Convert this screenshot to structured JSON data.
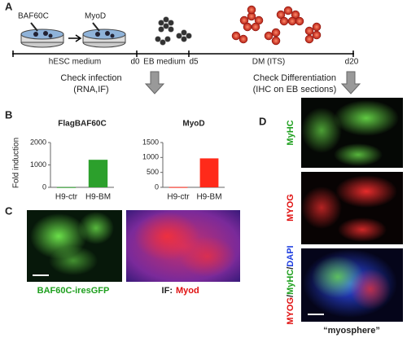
{
  "panel_a": {
    "label": "A",
    "steps": [
      "BAF60C",
      "MyoD"
    ],
    "timeline_labels": [
      "hESC medium",
      "d0",
      "EB medium",
      "d5",
      "DM (ITS)",
      "d20"
    ],
    "checks": [
      "Check infection",
      "(RNA,IF)",
      "Check Differentiation",
      "(IHC on EB sections)"
    ]
  },
  "panel_b": {
    "label": "B",
    "y_label": "Fold induction",
    "charts": [
      {
        "type": "bar",
        "title": "FlagBAF60C",
        "categories": [
          "H9-ctr",
          "H9-BM"
        ],
        "values": [
          10,
          1230
        ],
        "colors": [
          "#2ca02c",
          "#2ca02c"
        ],
        "ylim": [
          0,
          2000
        ],
        "yticks": [
          0,
          1000,
          2000
        ]
      },
      {
        "type": "bar",
        "title": "MyoD",
        "categories": [
          "H9-ctr",
          "H9-BM"
        ],
        "values": [
          10,
          970
        ],
        "colors": [
          "#ff2a1a",
          "#ff2a1a"
        ],
        "ylim": [
          0,
          1500
        ],
        "yticks": [
          0,
          500,
          1000,
          1500
        ]
      }
    ]
  },
  "panel_c": {
    "label": "C",
    "captions": [
      "BAF60C-iresGFP",
      "IF:",
      "Myod"
    ]
  },
  "panel_d": {
    "label": "D",
    "stain_labels": [
      "MyHC",
      "MYOG"
    ],
    "merge_parts": [
      "MYOG",
      "/",
      "MyHC",
      "/",
      "DAPI"
    ],
    "caption": "“myosphere”"
  }
}
